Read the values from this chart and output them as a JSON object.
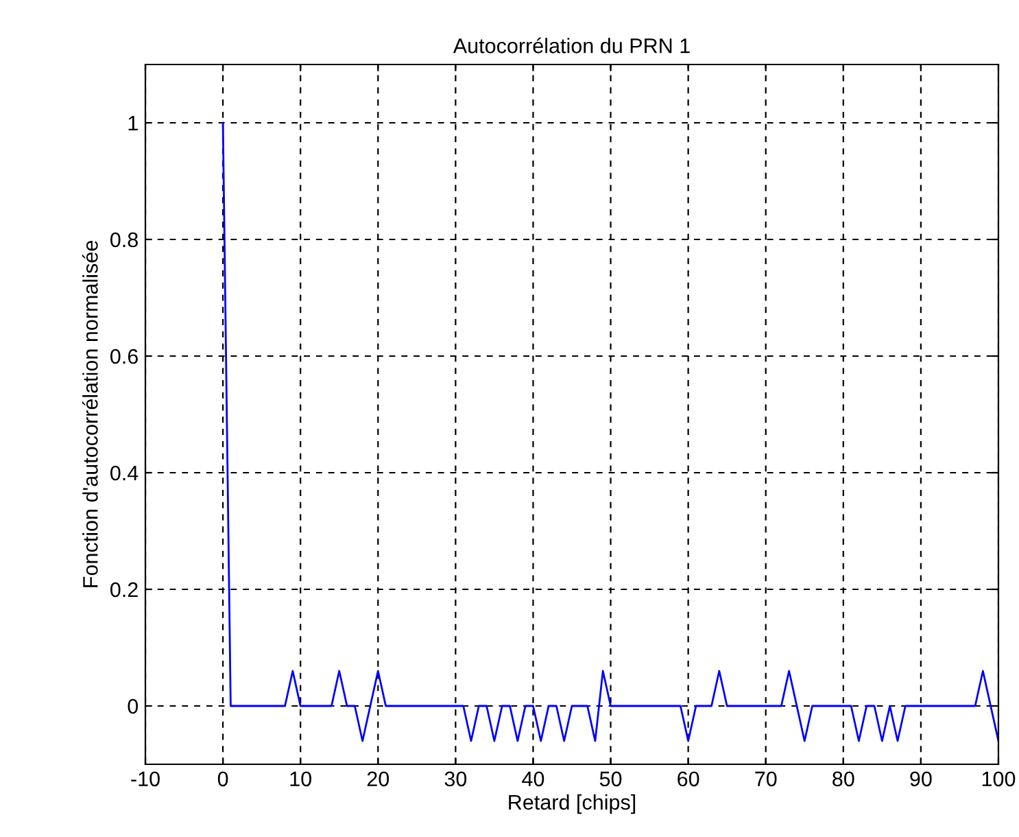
{
  "chart_data": {
    "type": "line",
    "title": "Autocorrélation du PRN 1",
    "xlabel": "Retard [chips]",
    "ylabel": "Fonction d'autocorrélation normalisée",
    "series": [
      {
        "color": "#0000ff",
        "x": [
          0,
          0.125,
          0.375,
          0.625,
          0.875,
          1,
          8,
          9,
          10,
          14,
          15,
          16,
          17,
          18,
          19,
          20,
          21,
          31,
          32,
          33,
          34,
          35,
          36,
          37,
          38,
          39,
          40,
          41,
          42,
          43,
          44,
          45,
          47,
          48,
          49,
          50,
          59,
          60,
          61,
          63,
          64,
          65,
          72,
          73,
          74,
          75,
          76,
          81,
          82,
          83,
          84,
          85,
          86,
          87,
          88,
          97,
          98,
          99,
          100
        ],
        "values": [
          1,
          0.875,
          0.625,
          0.375,
          0.125,
          0,
          0,
          0.06,
          0,
          0,
          0.06,
          0,
          0,
          -0.06,
          0,
          0.06,
          0,
          0,
          -0.06,
          0,
          0,
          -0.06,
          0,
          0,
          -0.06,
          0,
          0,
          -0.06,
          0,
          0,
          -0.06,
          0,
          0,
          -0.06,
          0.06,
          0,
          0,
          -0.06,
          0,
          0,
          0.06,
          0,
          0,
          0.06,
          0,
          -0.06,
          0,
          0,
          -0.06,
          0,
          0,
          -0.06,
          0,
          -0.06,
          0,
          0,
          0.06,
          0,
          -0.06
        ]
      }
    ],
    "xlim": [
      -10,
      100
    ],
    "ylim": [
      -0.1,
      1.1
    ],
    "xticks": [
      -10,
      0,
      10,
      20,
      30,
      40,
      50,
      60,
      70,
      80,
      90,
      100
    ],
    "yticks": [
      0,
      0.2,
      0.4,
      0.6,
      0.8,
      1
    ],
    "grid": true,
    "line_style": "solid",
    "marker": "none",
    "legend": false
  }
}
